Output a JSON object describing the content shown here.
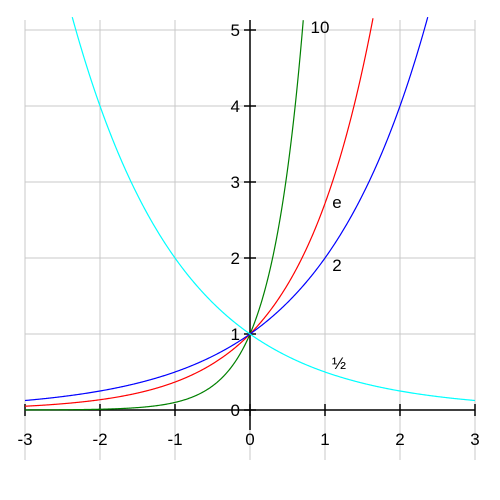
{
  "chart_data": {
    "type": "line",
    "title": "",
    "xlabel": "",
    "ylabel": "",
    "xlim": [
      -3,
      3
    ],
    "ylim": [
      0,
      5
    ],
    "grid": true,
    "x_ticks": [
      "-3",
      "-2",
      "-1",
      "0",
      "1",
      "2",
      "3"
    ],
    "y_ticks": [
      "0",
      "1",
      "2",
      "3",
      "4",
      "5"
    ],
    "series": [
      {
        "name": "10",
        "base": 10,
        "color": "#008000",
        "x": [
          -3,
          -2,
          -1,
          -0.5,
          0,
          0.25,
          0.5,
          0.6,
          0.699
        ],
        "y": [
          0.001,
          0.01,
          0.1,
          0.316,
          1,
          1.778,
          3.162,
          3.981,
          5.0
        ]
      },
      {
        "name": "e",
        "base": 2.718281828,
        "color": "#ff0000",
        "x": [
          -3,
          -2,
          -1,
          -0.5,
          0,
          0.5,
          1,
          1.5,
          1.609
        ],
        "y": [
          0.05,
          0.135,
          0.368,
          0.607,
          1,
          1.649,
          2.718,
          4.482,
          5.0
        ]
      },
      {
        "name": "2",
        "base": 2,
        "color": "#0000ff",
        "x": [
          -3,
          -2,
          -1,
          0,
          1,
          1.5,
          2,
          2.32
        ],
        "y": [
          0.125,
          0.25,
          0.5,
          1,
          2,
          2.828,
          4,
          5.0
        ]
      },
      {
        "name": "½",
        "base": 0.5,
        "color": "#00ffff",
        "x": [
          -2.32,
          -2,
          -1.5,
          -1,
          0,
          1,
          2,
          3
        ],
        "y": [
          5.0,
          4,
          2.828,
          2,
          1,
          0.5,
          0.25,
          0.125
        ]
      }
    ],
    "curve_labels": [
      {
        "series": "10",
        "text": "10"
      },
      {
        "series": "e",
        "text": "e"
      },
      {
        "series": "2",
        "text": "2"
      },
      {
        "series": "½",
        "text": "½"
      }
    ]
  }
}
